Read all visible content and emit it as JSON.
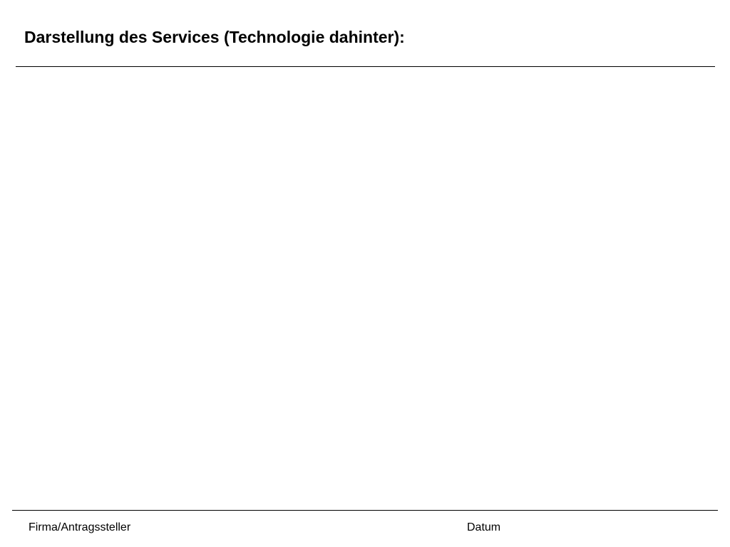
{
  "header": {
    "title": "Darstellung des Services (Technologie dahinter):"
  },
  "footer": {
    "company_label": "Firma/Antragssteller",
    "date_label": "Datum"
  }
}
